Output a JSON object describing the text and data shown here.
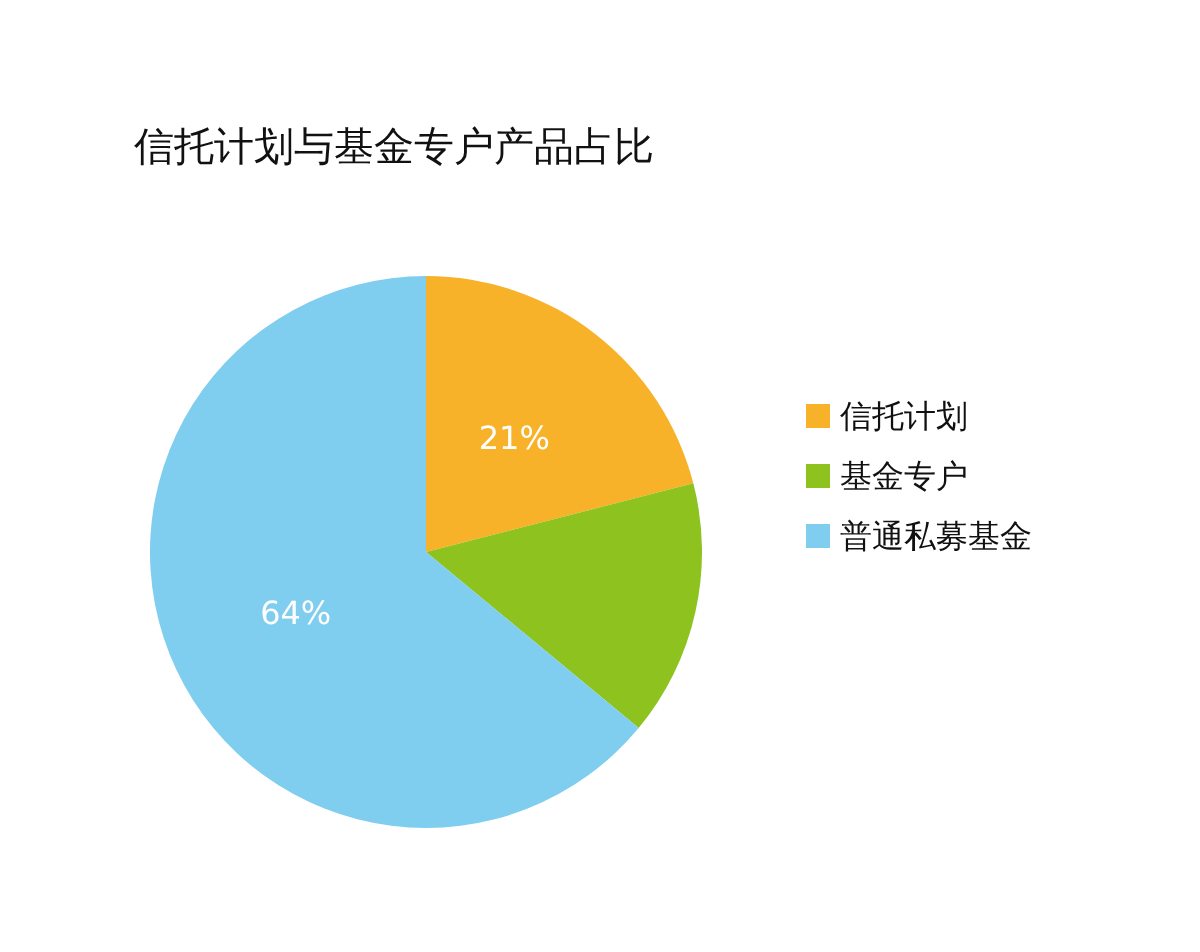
{
  "chart_data": {
    "type": "pie",
    "title": "信托计划与基金专户产品占比",
    "categories": [
      "信托计划",
      "基金专户",
      "普通私募基金"
    ],
    "values": [
      21,
      15,
      64
    ],
    "colors": [
      "#f8b22a",
      "#8dc21f",
      "#7fcdef"
    ],
    "value_labels": [
      "21%",
      null,
      "64%"
    ],
    "legend": "right"
  }
}
